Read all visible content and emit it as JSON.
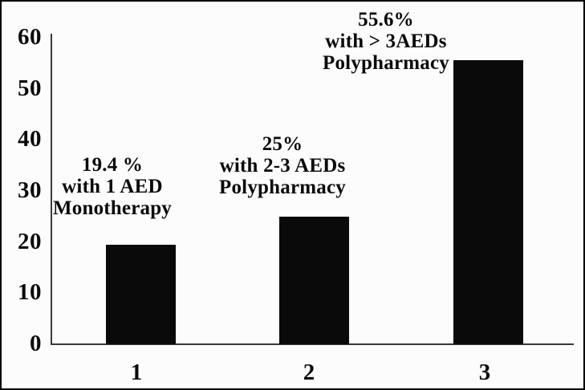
{
  "chart_data": {
    "type": "bar",
    "title": "",
    "xlabel": "",
    "ylabel": "",
    "categories": [
      "1",
      "2",
      "3"
    ],
    "values": [
      19.4,
      25,
      55.6
    ],
    "ylim": [
      0,
      60
    ],
    "yticks": [
      0,
      10,
      20,
      30,
      40,
      50,
      60
    ],
    "grid": false,
    "legend": false,
    "bar_color": "#0a0a0a",
    "axis_color": "#3a3a3a",
    "text_color": "#0a0a0a",
    "background": "#fcfcfc",
    "annotations": [
      {
        "bar": "1",
        "lines": [
          "19.4 %",
          "with 1 AED",
          "Monotherapy"
        ]
      },
      {
        "bar": "2",
        "lines": [
          "25%",
          "with 2-3 AEDs",
          "Polypharmacy"
        ]
      },
      {
        "bar": "3",
        "lines": [
          "55.6%",
          "with > 3AEDs",
          "Polypharmacy"
        ]
      }
    ]
  }
}
